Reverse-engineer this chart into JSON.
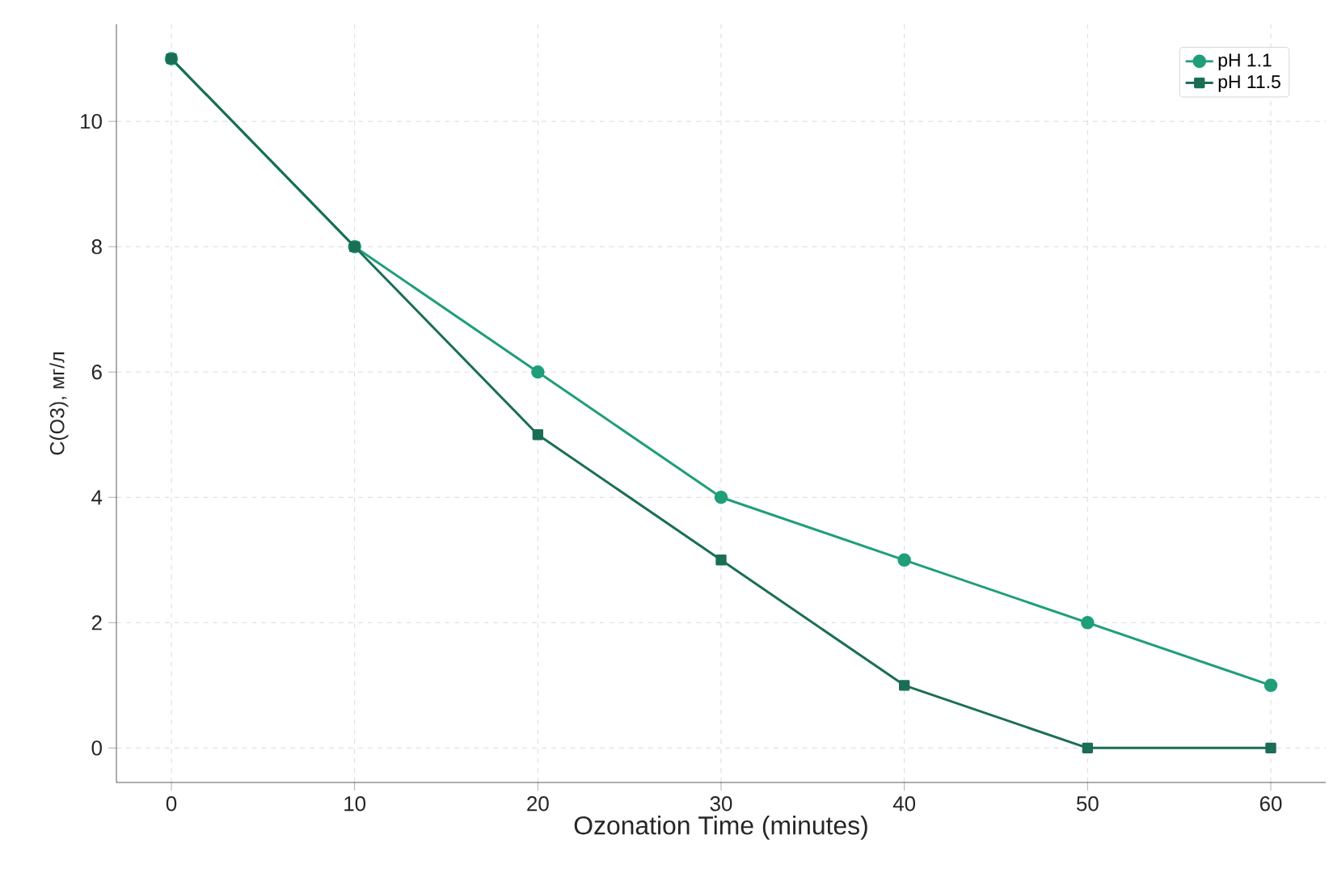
{
  "chart_data": {
    "type": "line",
    "xlabel": "Ozonation Time (minutes)",
    "ylabel": "C(O3), мг/л",
    "x": [
      0,
      10,
      20,
      30,
      40,
      50,
      60
    ],
    "series": [
      {
        "name": "pH 1.1",
        "color": "#1f9e7a",
        "marker": "circle",
        "values": [
          11,
          8,
          6,
          4,
          3,
          2,
          1
        ]
      },
      {
        "name": "pH 11.5",
        "color": "#1a6e55",
        "marker": "square",
        "values": [
          11,
          8,
          5,
          3,
          1,
          0,
          0
        ]
      }
    ],
    "xlim": [
      -3,
      63
    ],
    "ylim": [
      -0.55,
      11.55
    ],
    "xticks": [
      0,
      10,
      20,
      30,
      40,
      50,
      60
    ],
    "yticks": [
      0,
      2,
      4,
      6,
      8,
      10
    ],
    "grid": true,
    "legend": "top right",
    "line_style": "solid"
  }
}
